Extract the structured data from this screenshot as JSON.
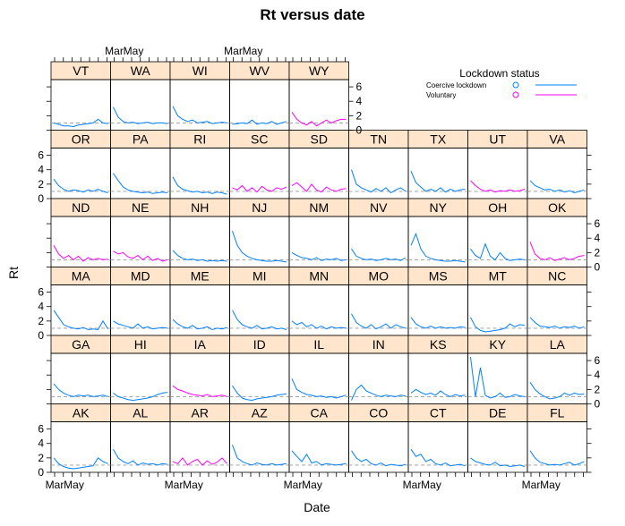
{
  "chart_data": {
    "type": "line",
    "title": "Rt versus date",
    "xlabel": "Date",
    "ylabel": "Rt",
    "x_ticks": [
      "Mar",
      "May"
    ],
    "y_ticks": [
      0,
      2,
      4,
      6
    ],
    "ylim": [
      0,
      7
    ],
    "reference_line": 1,
    "legend": {
      "title": "Lockdown status",
      "entries": [
        {
          "label": "Coercive lockdown",
          "color": "#0080ff"
        },
        {
          "label": "Voluntary",
          "color": "#ff00ff"
        }
      ]
    },
    "panel_rows": [
      [
        "VT",
        "WA",
        "WI",
        "WV",
        "WY"
      ],
      [
        "OR",
        "PA",
        "RI",
        "SC",
        "SD",
        "TN",
        "TX",
        "UT",
        "VA"
      ],
      [
        "ND",
        "NE",
        "NH",
        "NJ",
        "NM",
        "NV",
        "NY",
        "OH",
        "OK"
      ],
      [
        "MA",
        "MD",
        "ME",
        "MI",
        "MN",
        "MO",
        "MS",
        "MT",
        "NC"
      ],
      [
        "GA",
        "HI",
        "IA",
        "ID",
        "IL",
        "IN",
        "KS",
        "KY",
        "LA"
      ],
      [
        "AK",
        "AL",
        "AR",
        "AZ",
        "CA",
        "CO",
        "CT",
        "DE",
        "FL"
      ]
    ],
    "series": [
      {
        "state": "VT",
        "status": "coercive",
        "values": [
          1.0,
          0.8,
          0.6,
          0.6,
          0.5,
          0.7,
          0.8,
          0.9,
          1.0,
          1.5,
          1.0,
          0.9
        ]
      },
      {
        "state": "WA",
        "status": "coercive",
        "values": [
          3.2,
          1.8,
          1.2,
          1.0,
          1.1,
          0.9,
          1.0,
          1.1,
          0.9,
          1.0,
          1.0,
          0.9
        ]
      },
      {
        "state": "WI",
        "status": "coercive",
        "values": [
          3.3,
          2.0,
          1.5,
          1.2,
          1.4,
          1.0,
          1.1,
          1.2,
          0.9,
          1.0,
          1.1,
          1.0
        ]
      },
      {
        "state": "WV",
        "status": "coercive",
        "values": [
          0.8,
          0.9,
          1.0,
          0.9,
          1.4,
          0.8,
          1.0,
          0.9,
          1.2,
          0.8,
          1.0,
          1.2
        ]
      },
      {
        "state": "WY",
        "status": "voluntary",
        "values": [
          2.5,
          1.5,
          1.0,
          0.7,
          1.2,
          0.6,
          1.0,
          1.4,
          1.0,
          1.3,
          1.5,
          1.5
        ]
      },
      {
        "state": "OR",
        "status": "coercive",
        "values": [
          2.7,
          1.8,
          1.3,
          1.0,
          1.2,
          1.1,
          0.9,
          1.2,
          1.0,
          1.3,
          1.0,
          0.8
        ]
      },
      {
        "state": "PA",
        "status": "coercive",
        "values": [
          3.5,
          2.5,
          1.6,
          1.2,
          1.0,
          0.9,
          0.8,
          0.9,
          0.7,
          0.8,
          0.9,
          0.8
        ]
      },
      {
        "state": "RI",
        "status": "coercive",
        "values": [
          3.0,
          1.8,
          1.3,
          1.1,
          0.9,
          1.0,
          0.8,
          0.9,
          0.7,
          0.9,
          0.8,
          0.6
        ]
      },
      {
        "state": "SC",
        "status": "voluntary",
        "values": [
          1.5,
          1.2,
          1.8,
          1.0,
          1.5,
          0.9,
          1.7,
          1.2,
          1.0,
          1.5,
          1.3,
          1.6
        ]
      },
      {
        "state": "SD",
        "status": "voluntary",
        "values": [
          1.8,
          2.2,
          1.6,
          1.0,
          2.0,
          1.2,
          0.9,
          1.6,
          1.2,
          1.0,
          1.3,
          1.4
        ]
      },
      {
        "state": "TN",
        "status": "coercive",
        "values": [
          4.0,
          2.0,
          1.5,
          1.2,
          0.9,
          1.4,
          1.0,
          1.5,
          0.8,
          1.2,
          1.5,
          1.0
        ]
      },
      {
        "state": "TX",
        "status": "coercive",
        "values": [
          3.8,
          2.2,
          1.6,
          1.0,
          1.3,
          1.0,
          1.5,
          0.9,
          1.3,
          1.0,
          1.2,
          1.3
        ]
      },
      {
        "state": "UT",
        "status": "voluntary",
        "values": [
          2.5,
          1.8,
          1.3,
          1.0,
          1.2,
          0.9,
          1.1,
          1.0,
          1.2,
          1.0,
          1.1,
          1.3
        ]
      },
      {
        "state": "VA",
        "status": "coercive",
        "values": [
          2.5,
          1.8,
          1.5,
          1.2,
          1.3,
          1.0,
          1.2,
          0.9,
          1.1,
          0.8,
          1.0,
          1.2
        ]
      },
      {
        "state": "ND",
        "status": "voluntary",
        "values": [
          3.0,
          1.8,
          1.2,
          1.6,
          1.0,
          1.5,
          0.8,
          1.3,
          1.0,
          1.2,
          1.0,
          1.1
        ]
      },
      {
        "state": "NE",
        "status": "voluntary",
        "values": [
          2.2,
          1.8,
          2.0,
          1.4,
          1.2,
          1.6,
          1.0,
          1.5,
          0.9,
          1.2,
          0.8,
          1.0
        ]
      },
      {
        "state": "NH",
        "status": "coercive",
        "values": [
          2.3,
          1.6,
          1.2,
          1.0,
          1.1,
          0.9,
          1.0,
          0.8,
          0.9,
          0.8,
          0.9,
          0.8
        ]
      },
      {
        "state": "NJ",
        "status": "coercive",
        "values": [
          5.0,
          3.0,
          2.0,
          1.5,
          1.2,
          1.0,
          0.9,
          0.8,
          0.8,
          0.9,
          0.8,
          0.7
        ]
      },
      {
        "state": "NM",
        "status": "coercive",
        "values": [
          2.0,
          1.6,
          1.3,
          1.2,
          1.0,
          1.3,
          0.9,
          1.1,
          1.0,
          1.2,
          0.9,
          1.0
        ]
      },
      {
        "state": "NV",
        "status": "coercive",
        "values": [
          2.5,
          1.5,
          1.2,
          1.0,
          1.1,
          0.9,
          1.0,
          1.2,
          1.0,
          1.1,
          0.9,
          1.3
        ]
      },
      {
        "state": "NY",
        "status": "coercive",
        "values": [
          3.0,
          4.6,
          2.5,
          1.5,
          1.2,
          1.0,
          0.9,
          0.8,
          0.8,
          0.9,
          0.8,
          0.7
        ]
      },
      {
        "state": "OH",
        "status": "coercive",
        "values": [
          2.5,
          1.6,
          1.2,
          3.2,
          1.5,
          1.0,
          2.0,
          1.2,
          0.9,
          1.0,
          1.1,
          1.0
        ]
      },
      {
        "state": "OK",
        "status": "voluntary",
        "values": [
          3.5,
          1.8,
          1.2,
          1.0,
          1.3,
          0.9,
          1.1,
          1.3,
          1.0,
          1.2,
          1.5,
          1.6
        ]
      },
      {
        "state": "MA",
        "status": "coercive",
        "values": [
          3.5,
          2.5,
          1.5,
          1.2,
          1.0,
          0.9,
          1.1,
          0.8,
          0.9,
          0.8,
          2.0,
          0.9
        ]
      },
      {
        "state": "MD",
        "status": "coercive",
        "values": [
          2.0,
          1.6,
          1.4,
          1.2,
          1.0,
          1.6,
          1.0,
          1.2,
          0.9,
          1.0,
          1.1,
          1.0
        ]
      },
      {
        "state": "ME",
        "status": "coercive",
        "values": [
          2.2,
          1.6,
          1.2,
          1.0,
          1.4,
          0.9,
          1.0,
          1.2,
          0.8,
          1.0,
          0.9,
          1.1
        ]
      },
      {
        "state": "MI",
        "status": "coercive",
        "values": [
          3.5,
          2.2,
          1.5,
          1.2,
          1.0,
          1.4,
          0.9,
          1.0,
          1.2,
          0.9,
          1.0,
          0.8
        ]
      },
      {
        "state": "MN",
        "status": "coercive",
        "values": [
          2.0,
          1.5,
          1.8,
          1.2,
          1.5,
          1.0,
          1.3,
          0.9,
          1.2,
          1.0,
          1.1,
          1.0
        ]
      },
      {
        "state": "MO",
        "status": "coercive",
        "values": [
          3.0,
          1.8,
          1.3,
          1.0,
          1.5,
          0.9,
          1.2,
          1.6,
          1.0,
          1.5,
          1.2,
          1.0
        ]
      },
      {
        "state": "MS",
        "status": "coercive",
        "values": [
          2.5,
          1.6,
          1.2,
          1.0,
          1.3,
          1.0,
          1.2,
          1.0,
          1.1,
          1.0,
          1.2,
          1.1
        ]
      },
      {
        "state": "MT",
        "status": "coercive",
        "values": [
          2.5,
          1.2,
          0.7,
          0.5,
          0.6,
          0.7,
          0.8,
          1.0,
          1.6,
          1.2,
          1.5,
          1.4
        ]
      },
      {
        "state": "NC",
        "status": "coercive",
        "values": [
          2.5,
          1.8,
          1.3,
          1.2,
          1.1,
          1.3,
          1.0,
          1.2,
          1.1,
          1.3,
          1.0,
          1.2
        ]
      },
      {
        "state": "GA",
        "status": "coercive",
        "values": [
          2.8,
          2.0,
          1.5,
          1.2,
          1.0,
          1.2,
          1.1,
          1.2,
          1.0,
          1.1,
          1.2,
          1.0
        ]
      },
      {
        "state": "HI",
        "status": "coercive",
        "values": [
          1.5,
          1.0,
          0.8,
          0.6,
          0.5,
          0.6,
          0.7,
          0.8,
          1.0,
          1.3,
          1.5,
          1.6
        ]
      },
      {
        "state": "IA",
        "status": "voluntary",
        "values": [
          2.5,
          2.0,
          1.8,
          1.5,
          1.3,
          1.2,
          1.1,
          1.3,
          1.0,
          1.1,
          1.2,
          1.0
        ]
      },
      {
        "state": "ID",
        "status": "coercive",
        "values": [
          2.5,
          1.5,
          0.8,
          0.6,
          0.5,
          0.7,
          0.8,
          0.9,
          1.0,
          1.2,
          1.3,
          1.4
        ]
      },
      {
        "state": "IL",
        "status": "coercive",
        "values": [
          3.5,
          2.0,
          1.6,
          1.3,
          1.2,
          1.0,
          1.1,
          0.9,
          1.0,
          0.8,
          1.0,
          1.2
        ]
      },
      {
        "state": "IN",
        "status": "coercive",
        "values": [
          0.5,
          2.0,
          2.6,
          1.8,
          1.5,
          1.2,
          1.0,
          1.2,
          1.1,
          1.0,
          1.2,
          1.1
        ]
      },
      {
        "state": "KS",
        "status": "coercive",
        "values": [
          1.5,
          2.0,
          1.6,
          1.3,
          1.5,
          1.2,
          1.8,
          1.3,
          1.0,
          1.3,
          1.1,
          1.2
        ]
      },
      {
        "state": "KY",
        "status": "coercive",
        "values": [
          6.5,
          1.0,
          5.0,
          1.2,
          0.8,
          1.0,
          1.5,
          0.9,
          1.0,
          1.3,
          1.1,
          1.0
        ]
      },
      {
        "state": "LA",
        "status": "coercive",
        "values": [
          3.0,
          2.0,
          1.4,
          1.0,
          0.7,
          0.8,
          1.0,
          1.5,
          1.2,
          1.5,
          1.3,
          1.4
        ]
      },
      {
        "state": "AK",
        "status": "coercive",
        "values": [
          2.0,
          1.2,
          0.8,
          0.6,
          0.5,
          0.6,
          0.7,
          0.8,
          0.9,
          2.0,
          1.5,
          1.2
        ]
      },
      {
        "state": "AL",
        "status": "coercive",
        "values": [
          3.2,
          2.0,
          1.5,
          1.2,
          1.6,
          1.0,
          1.3,
          1.1,
          1.2,
          1.0,
          1.2,
          1.1
        ]
      },
      {
        "state": "AR",
        "status": "voluntary",
        "values": [
          1.5,
          1.2,
          2.0,
          1.0,
          1.5,
          1.8,
          1.0,
          1.6,
          1.1,
          1.4,
          2.0,
          1.2
        ]
      },
      {
        "state": "AZ",
        "status": "coercive",
        "values": [
          3.8,
          2.0,
          1.5,
          1.2,
          1.0,
          1.3,
          1.1,
          1.0,
          1.2,
          1.0,
          1.1,
          1.2
        ]
      },
      {
        "state": "CA",
        "status": "coercive",
        "values": [
          3.0,
          2.2,
          1.5,
          2.5,
          1.3,
          1.5,
          1.0,
          1.2,
          1.1,
          1.0,
          1.1,
          1.2
        ]
      },
      {
        "state": "CO",
        "status": "coercive",
        "values": [
          3.0,
          2.0,
          1.5,
          1.8,
          1.2,
          1.0,
          1.3,
          0.9,
          1.1,
          1.0,
          0.9,
          1.1
        ]
      },
      {
        "state": "CT",
        "status": "coercive",
        "values": [
          3.2,
          2.2,
          2.5,
          1.5,
          1.8,
          1.2,
          1.0,
          1.3,
          0.9,
          1.0,
          1.1,
          0.9
        ]
      },
      {
        "state": "DE",
        "status": "coercive",
        "values": [
          2.0,
          1.5,
          1.3,
          1.1,
          1.0,
          1.4,
          0.9,
          1.0,
          0.8,
          0.9,
          1.0,
          0.8
        ]
      },
      {
        "state": "FL",
        "status": "coercive",
        "values": [
          3.0,
          2.0,
          1.4,
          1.2,
          1.0,
          1.1,
          1.0,
          1.2,
          1.4,
          1.0,
          1.2,
          1.5
        ]
      }
    ]
  }
}
